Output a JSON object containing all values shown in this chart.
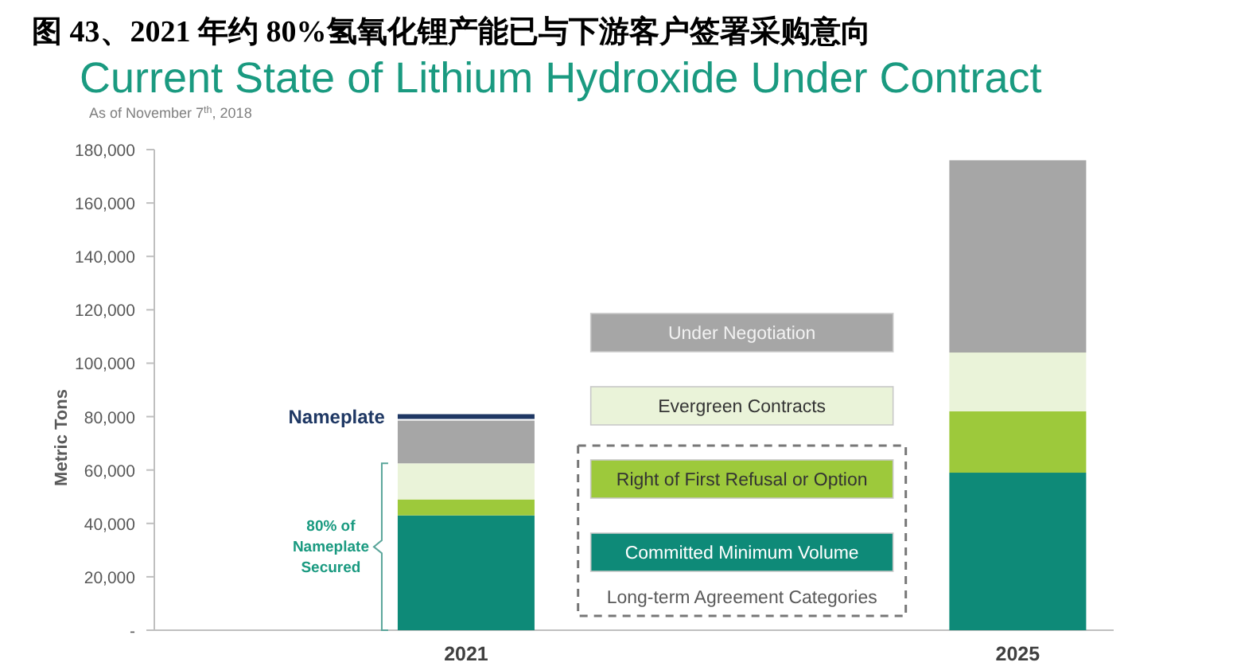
{
  "chart_data": {
    "type": "bar",
    "stacked": true,
    "title": "图 43、2021 年约 80%氢氧化锂产能已与下游客户签署采购意向",
    "subtitle": "Current State of Lithium Hydroxide Under Contract",
    "ylabel": "Metric Tons",
    "categories": [
      "2021",
      "2025"
    ],
    "series": [
      {
        "name": "Committed Minimum Volume",
        "color": "#0e8a78",
        "values": [
          43000,
          59000
        ]
      },
      {
        "name": "Right of First Refusal or Option",
        "color": "#9dc93b",
        "values": [
          6000,
          23000
        ]
      },
      {
        "name": "Evergreen Contracts",
        "color": "#eaf3d9",
        "values": [
          13500,
          22000
        ]
      },
      {
        "name": "Under Negotiation",
        "color": "#a6a6a6",
        "values": [
          16000,
          72000
        ]
      }
    ],
    "ylim": [
      0,
      180000
    ],
    "yticks": [
      {
        "value": 0,
        "label": "-"
      },
      {
        "value": 20000,
        "label": "20,000"
      },
      {
        "value": 40000,
        "label": "40,000"
      },
      {
        "value": 60000,
        "label": "60,000"
      },
      {
        "value": 80000,
        "label": "80,000"
      },
      {
        "value": 100000,
        "label": "100,000"
      },
      {
        "value": 120000,
        "label": "120,000"
      },
      {
        "value": 140000,
        "label": "140,000"
      },
      {
        "value": 160000,
        "label": "160,000"
      },
      {
        "value": 180000,
        "label": "180,000"
      }
    ],
    "ref_lines": [
      {
        "axis": "y",
        "value": 80000,
        "label": "Nameplate",
        "color": "#1f3864"
      }
    ],
    "annotations": [
      "As of November 7$^{th}$, 2018",
      "Long-term Agreement Categories",
      "80% of Nameplate Secured"
    ],
    "legend": "center"
  }
}
